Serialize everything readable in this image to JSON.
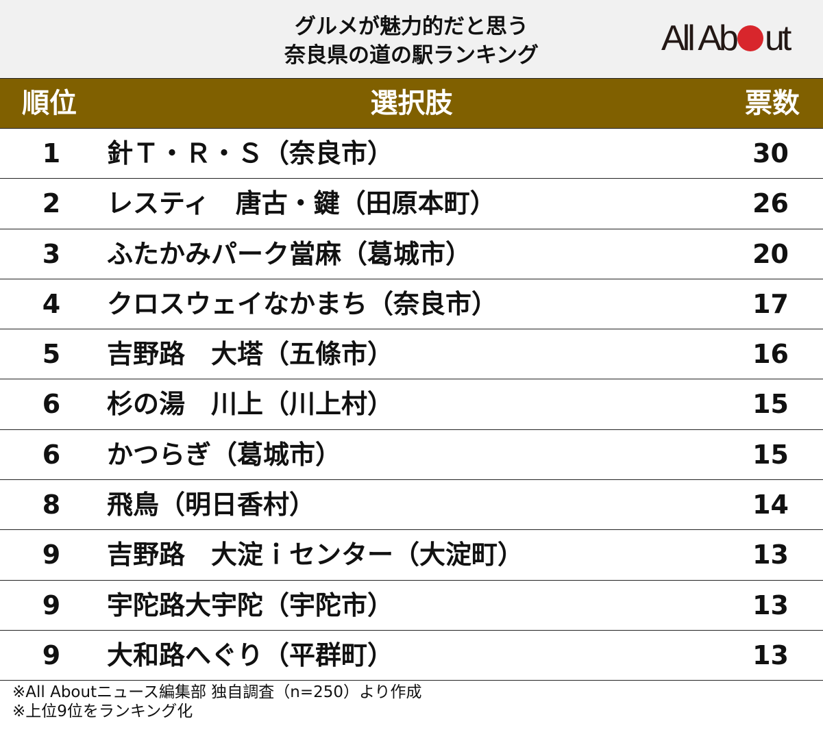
{
  "title": {
    "line1": "グルメが魅力的だと思う",
    "line2": "奈良県の道の駅ランキング"
  },
  "logo": {
    "text_before": "All Ab",
    "text_after": "ut",
    "dot_color": "#d8262c"
  },
  "colors": {
    "title_band": "#f1f1f1",
    "header_band": "#806000",
    "header_text": "#ffffff",
    "body_text": "#111111"
  },
  "table": {
    "headers": {
      "rank": "順位",
      "choice": "選択肢",
      "votes": "票数"
    },
    "rows": [
      {
        "rank": "1",
        "name": "針Ｔ・Ｒ・Ｓ（奈良市）",
        "votes": "30"
      },
      {
        "rank": "2",
        "name": "レスティ　唐古・鍵（田原本町）",
        "votes": "26"
      },
      {
        "rank": "3",
        "name": "ふたかみパーク當麻（葛城市）",
        "votes": "20"
      },
      {
        "rank": "4",
        "name": "クロスウェイなかまち（奈良市）",
        "votes": "17"
      },
      {
        "rank": "5",
        "name": "吉野路　大塔（五條市）",
        "votes": "16"
      },
      {
        "rank": "6",
        "name": "杉の湯　川上（川上村）",
        "votes": "15"
      },
      {
        "rank": "6",
        "name": "かつらぎ（葛城市）",
        "votes": "15"
      },
      {
        "rank": "8",
        "name": "飛鳥（明日香村）",
        "votes": "14"
      },
      {
        "rank": "9",
        "name": "吉野路　大淀ｉセンター（大淀町）",
        "votes": "13"
      },
      {
        "rank": "9",
        "name": "宇陀路大宇陀（宇陀市）",
        "votes": "13"
      },
      {
        "rank": "9",
        "name": "大和路へぐり（平群町）",
        "votes": "13"
      }
    ]
  },
  "footer": {
    "note1": "※All Aboutニュース編集部 独自調査（n=250）より作成",
    "note2": "※上位9位をランキング化"
  },
  "chart_data": {
    "type": "table",
    "title": "グルメが魅力的だと思う奈良県の道の駅ランキング",
    "columns": [
      "順位",
      "選択肢",
      "票数"
    ],
    "categories": [
      "針Ｔ・Ｒ・Ｓ（奈良市）",
      "レスティ　唐古・鍵（田原本町）",
      "ふたかみパーク當麻（葛城市）",
      "クロスウェイなかまち（奈良市）",
      "吉野路　大塔（五條市）",
      "杉の湯　川上（川上村）",
      "かつらぎ（葛城市）",
      "飛鳥（明日香村）",
      "吉野路　大淀ｉセンター（大淀町）",
      "宇陀路大宇陀（宇陀市）",
      "大和路へぐり（平群町）"
    ],
    "ranks": [
      1,
      2,
      3,
      4,
      5,
      6,
      6,
      8,
      9,
      9,
      9
    ],
    "values": [
      30,
      26,
      20,
      17,
      16,
      15,
      15,
      14,
      13,
      13,
      13
    ],
    "notes": [
      "※All Aboutニュース編集部 独自調査（n=250）より作成",
      "※上位9位をランキング化"
    ],
    "sample_size": 250
  }
}
